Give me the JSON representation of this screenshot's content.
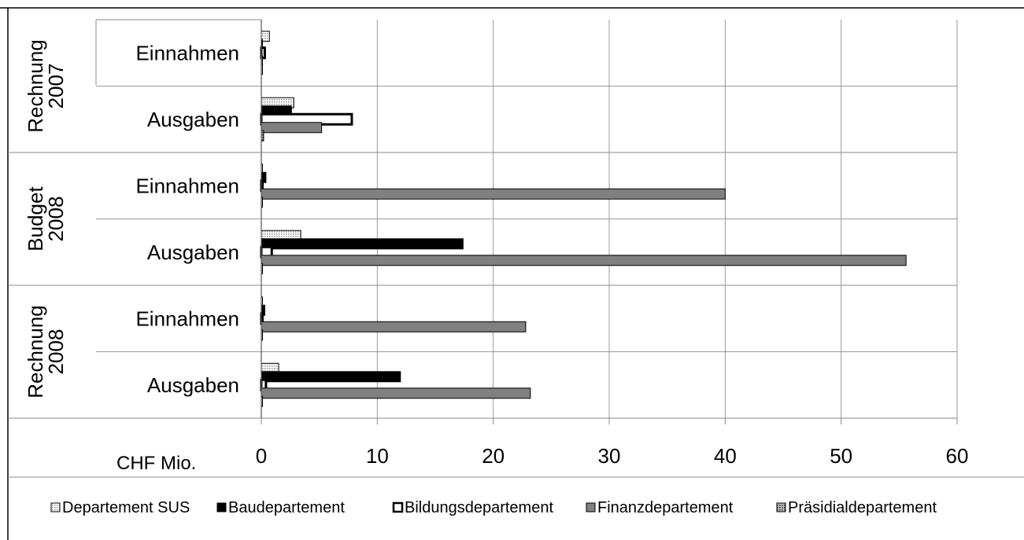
{
  "chart_data": {
    "type": "bar",
    "orientation": "horizontal",
    "unit_label": "CHF Mio.",
    "xlim": [
      0,
      60
    ],
    "x_ticks": [
      "0",
      "10",
      "20",
      "30",
      "40",
      "50",
      "60"
    ],
    "grid": true,
    "legend_position": "bottom",
    "groups": [
      {
        "label_lines": [
          "Rechnung",
          "2007"
        ],
        "categories": [
          "Einnahmen",
          "Ausgaben"
        ]
      },
      {
        "label_lines": [
          "Budget",
          "2008"
        ],
        "categories": [
          "Einnahmen",
          "Ausgaben"
        ]
      },
      {
        "label_lines": [
          "Rechnung",
          "2008"
        ],
        "categories": [
          "Einnahmen",
          "Ausgaben"
        ]
      }
    ],
    "series": [
      {
        "name": "Departement SUS",
        "color": "#d9d9d9",
        "style": "dotted",
        "values": [
          0.7,
          2.8,
          0.1,
          3.4,
          0.1,
          1.5
        ]
      },
      {
        "name": "Baudepartement",
        "color": "#000000",
        "style": "solid",
        "values": [
          0.1,
          2.6,
          0.4,
          17.4,
          0.3,
          12.0
        ]
      },
      {
        "name": "Bildungsdepartement",
        "color": "#ffffff",
        "style": "outlined",
        "values": [
          0.3,
          7.8,
          0.1,
          0.9,
          0.1,
          0.4
        ]
      },
      {
        "name": "Finanzdepartement",
        "color": "#808080",
        "style": "solid",
        "values": [
          0.1,
          5.2,
          40.0,
          55.6,
          22.8,
          23.2
        ]
      },
      {
        "name": "Präsidialdepartement",
        "color": "#8c8c8c",
        "style": "dotted",
        "values": [
          0.1,
          0.2,
          0.1,
          0.1,
          0.1,
          0.1
        ]
      }
    ]
  }
}
